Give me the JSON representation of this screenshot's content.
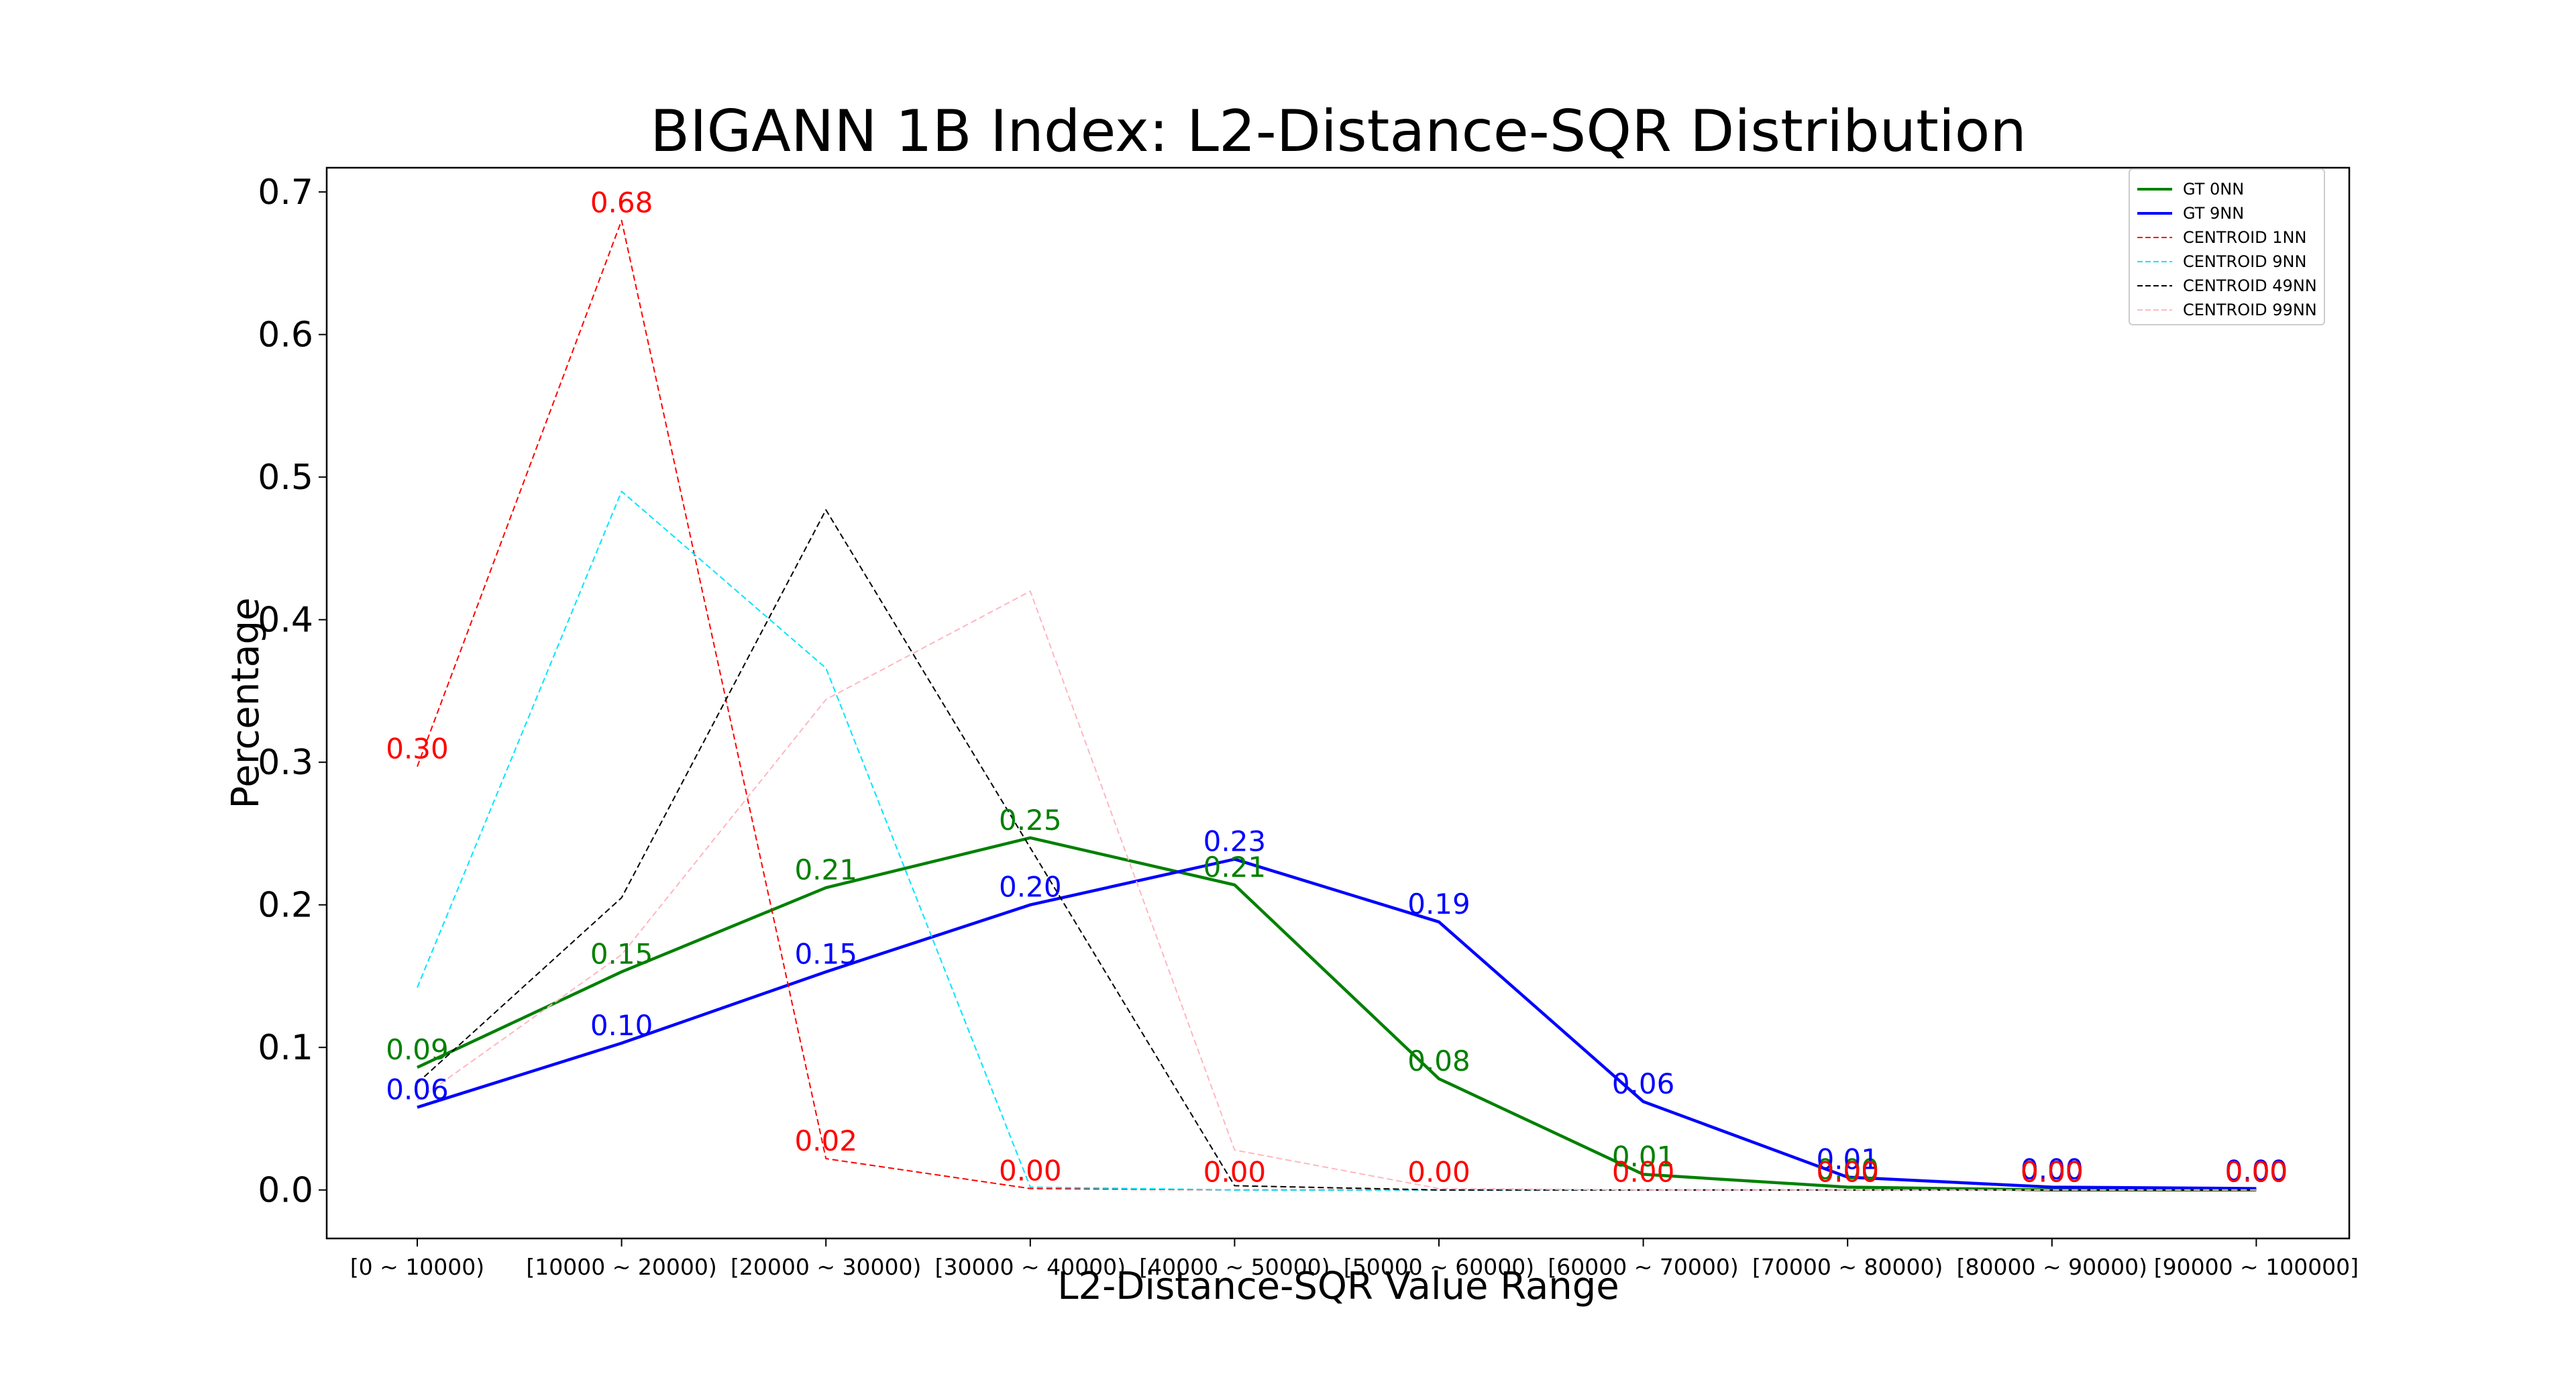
{
  "chart_data": {
    "type": "line",
    "title": "BIGANN 1B Index: L2-Distance-SQR Distribution",
    "xlabel": "L2-Distance-SQR Value Range",
    "ylabel": "Percentage",
    "categories": [
      "[0 ~ 10000)",
      "[10000 ~ 20000)",
      "[20000 ~ 30000)",
      "[30000 ~ 40000)",
      "[40000 ~ 50000)",
      "[50000 ~ 60000)",
      "[60000 ~ 70000)",
      "[70000 ~ 80000)",
      "[80000 ~ 90000)",
      "[90000 ~ 100000]"
    ],
    "ylim": [
      -0.034,
      0.717
    ],
    "yticks": [
      0.0,
      0.1,
      0.2,
      0.3,
      0.4,
      0.5,
      0.6,
      0.7
    ],
    "ytick_labels": [
      "0.0",
      "0.1",
      "0.2",
      "0.3",
      "0.4",
      "0.5",
      "0.6",
      "0.7"
    ],
    "grid": false,
    "legend_position": "top-right",
    "series": [
      {
        "name": "GT 0NN",
        "color": "#008000",
        "style": "solid",
        "labeled": true,
        "values": [
          0.086,
          0.153,
          0.212,
          0.247,
          0.214,
          0.078,
          0.011,
          0.002,
          0.0,
          0.0
        ],
        "value_labels": [
          "0.09",
          "0.15",
          "0.21",
          "0.25",
          "0.21",
          "0.08",
          "0.01",
          "0.00",
          "0.00",
          "0.00"
        ]
      },
      {
        "name": "GT 9NN",
        "color": "#0000ff",
        "style": "solid",
        "labeled": true,
        "values": [
          0.058,
          0.103,
          0.153,
          0.2,
          0.232,
          0.188,
          0.062,
          0.009,
          0.002,
          0.001
        ],
        "value_labels": [
          "0.06",
          "0.10",
          "0.15",
          "0.20",
          "0.23",
          "0.19",
          "0.06",
          "0.01",
          "0.00",
          "0.00"
        ]
      },
      {
        "name": "CENTROID 1NN",
        "color": "#ff0000",
        "style": "dashed",
        "labeled": true,
        "values": [
          0.297,
          0.68,
          0.022,
          0.001,
          0.0,
          0.0,
          0.0,
          0.0,
          0.0,
          0.0
        ],
        "value_labels": [
          "0.30",
          "0.68",
          "0.02",
          "0.00",
          "0.00",
          "0.00",
          "0.00",
          "0.00",
          "0.00",
          "0.00"
        ]
      },
      {
        "name": "CENTROID 9NN",
        "color": "#00e5ff",
        "style": "dashed",
        "labeled": false,
        "values": [
          0.142,
          0.49,
          0.366,
          0.002,
          0.0,
          0.0,
          0.0,
          0.0,
          0.0,
          0.0
        ]
      },
      {
        "name": "CENTROID 49NN",
        "color": "#000000",
        "style": "dashed",
        "labeled": false,
        "values": [
          0.075,
          0.205,
          0.477,
          0.24,
          0.003,
          0.0,
          0.0,
          0.0,
          0.0,
          0.0
        ]
      },
      {
        "name": "CENTROID 99NN",
        "color": "#ffb6c1",
        "style": "dashed",
        "labeled": false,
        "values": [
          0.063,
          0.165,
          0.344,
          0.42,
          0.028,
          0.001,
          0.0,
          0.0,
          0.0,
          0.0
        ]
      }
    ]
  }
}
